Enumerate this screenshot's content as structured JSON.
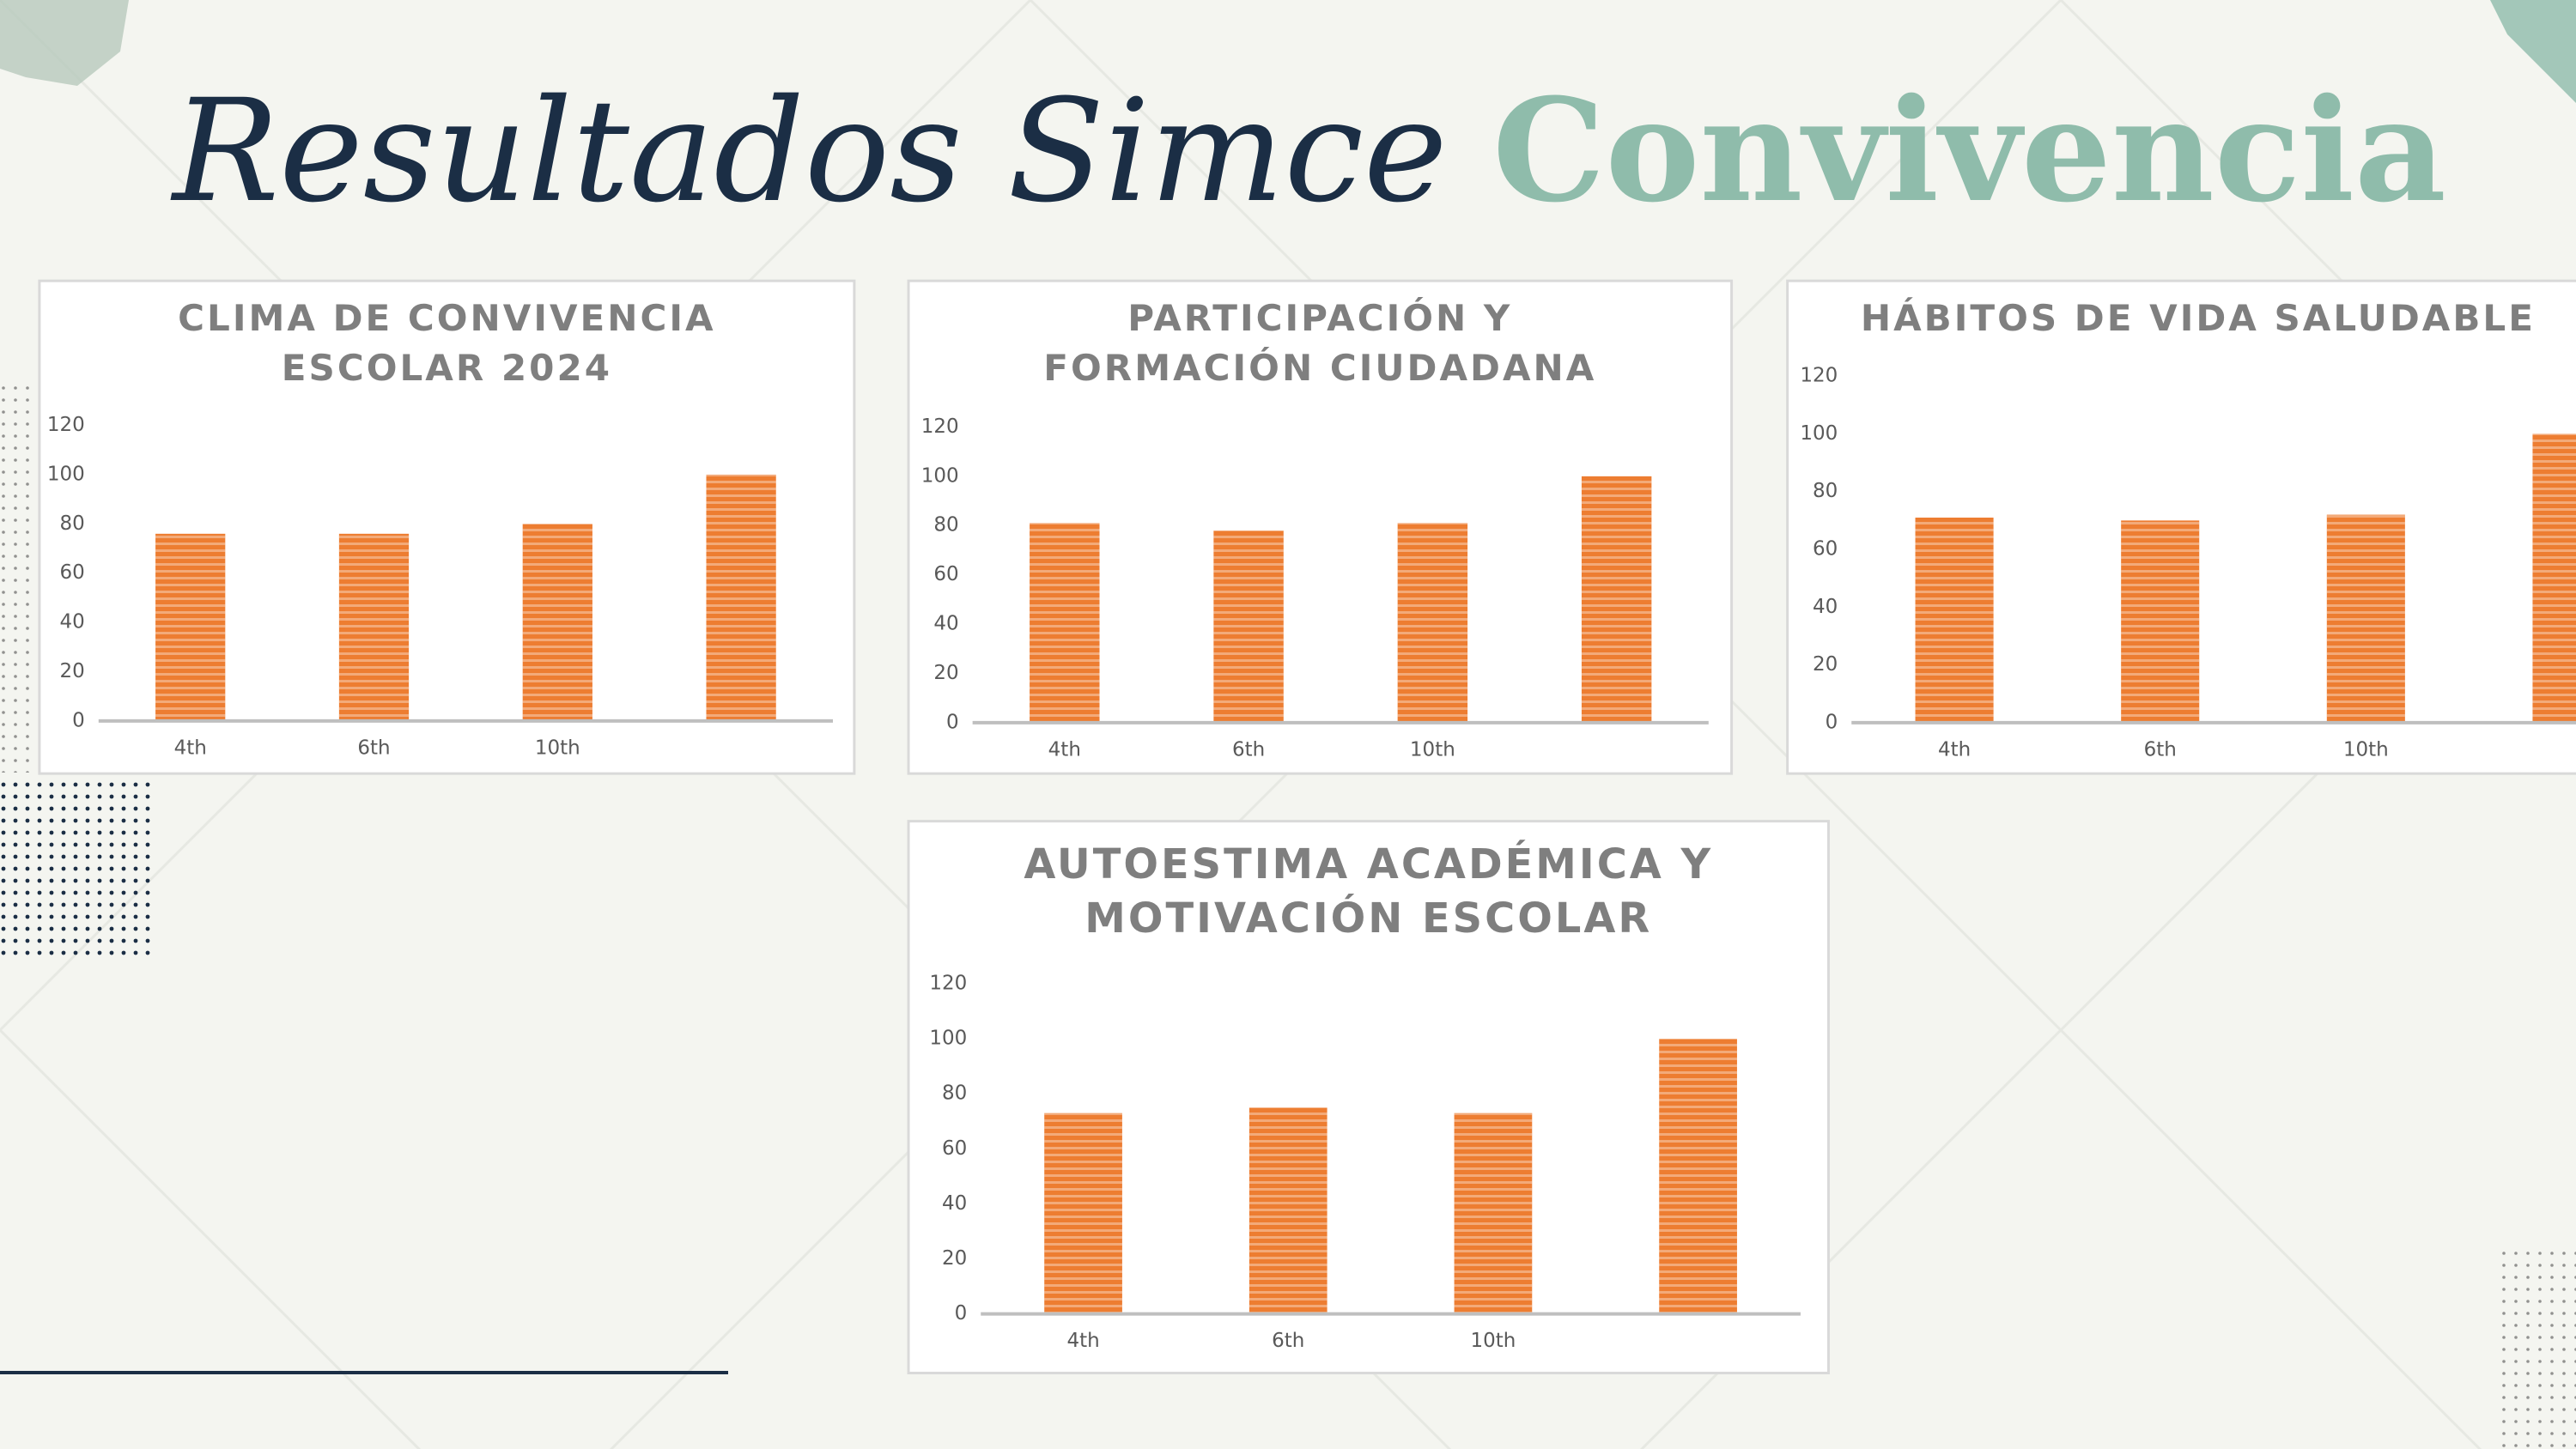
{
  "title": {
    "main": "Resultados Simce",
    "accent": "Convivencia"
  },
  "chart_data": [
    {
      "type": "bar",
      "title": "CLIMA DE CONVIVENCIA ESCOLAR 2024",
      "categories": [
        "4th",
        "6th",
        "10th",
        null
      ],
      "values": [
        76,
        76,
        80,
        100
      ],
      "color": "#ed7d31",
      "ylim": [
        0,
        120
      ],
      "yticks": [
        0,
        20,
        40,
        60,
        80,
        100,
        120
      ],
      "grid": false
    },
    {
      "type": "bar",
      "title": "PARTICIPACIÓN Y FORMACIÓN CIUDADANA",
      "categories": [
        "4th",
        "6th",
        "10th",
        null
      ],
      "values": [
        81,
        78,
        81,
        100
      ],
      "color": "#ed7d31",
      "ylim": [
        0,
        120
      ],
      "yticks": [
        0,
        20,
        40,
        60,
        80,
        100,
        120
      ],
      "grid": false
    },
    {
      "type": "bar",
      "title": "HÁBITOS DE VIDA SALUDABLE",
      "categories": [
        "4th",
        "6th",
        "10th",
        null
      ],
      "values": [
        71,
        70,
        72,
        100
      ],
      "color": "#ed7d31",
      "ylim": [
        0,
        120
      ],
      "yticks": [
        0,
        20,
        40,
        60,
        80,
        100,
        120
      ],
      "grid": false
    },
    {
      "type": "bar",
      "title": "AUTOESTIMA ACADÉMICA Y MOTIVACIÓN ESCOLAR",
      "categories": [
        "4th",
        "6th",
        "10th",
        null
      ],
      "values": [
        73,
        75,
        73,
        100
      ],
      "color": "#ed7d31",
      "ylim": [
        0,
        120
      ],
      "yticks": [
        0,
        20,
        40,
        60,
        80,
        100,
        120
      ],
      "grid": false
    }
  ]
}
